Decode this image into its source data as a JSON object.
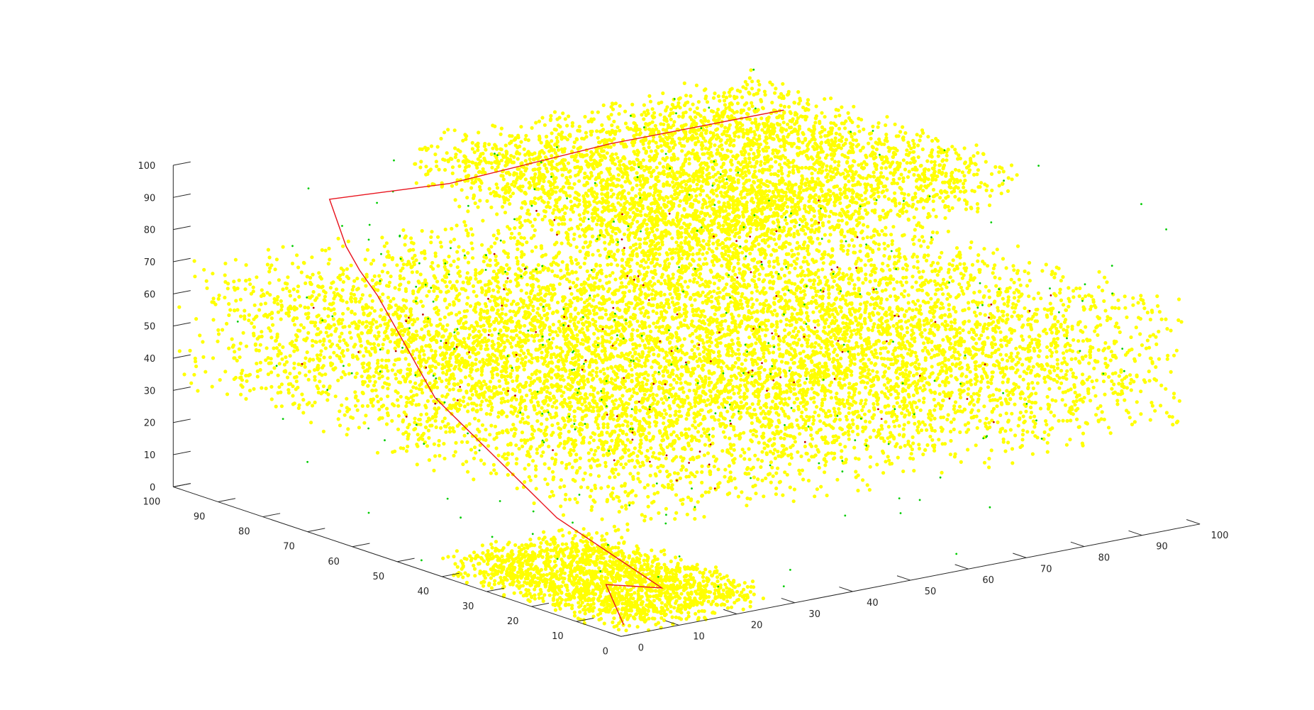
{
  "chart_data": {
    "type": "scatter",
    "title": "",
    "xlabel": "",
    "ylabel": "",
    "zlabel": "",
    "xlim": [
      0,
      100
    ],
    "ylim": [
      0,
      100
    ],
    "zlim": [
      0,
      100
    ],
    "x_ticks": [
      "0",
      "10",
      "20",
      "30",
      "40",
      "50",
      "60",
      "70",
      "80",
      "90",
      "100"
    ],
    "y_ticks": [
      "0",
      "10",
      "20",
      "30",
      "40",
      "50",
      "60",
      "70",
      "80",
      "90",
      "100"
    ],
    "z_ticks": [
      "0",
      "10",
      "20",
      "30",
      "40",
      "50",
      "60",
      "70",
      "80",
      "90",
      "100"
    ],
    "grid": false,
    "legend": "none",
    "colors": {
      "obstacle_points": "#ffff00",
      "sample_points": "#00cc00",
      "path": "#e8141e",
      "path_nodes": "#c00000",
      "axes": "#262626"
    },
    "obstacles": [
      {
        "name_hint": "bottom slab",
        "x_range": [
          0,
          25
        ],
        "y_range": [
          0,
          40
        ],
        "z_range": [
          0,
          8
        ]
      },
      {
        "name_hint": "middle slab",
        "x_range": [
          0,
          100
        ],
        "y_range": [
          0,
          100
        ],
        "z_range": [
          30,
          70
        ]
      },
      {
        "name_hint": "top slab",
        "x_range": [
          40,
          100
        ],
        "y_range": [
          40,
          100
        ],
        "z_range": [
          80,
          95
        ]
      }
    ],
    "path": {
      "points": [
        [
          2,
          2,
          2
        ],
        [
          9,
          15,
          6
        ],
        [
          14,
          9,
          6
        ],
        [
          16,
          35,
          15
        ],
        [
          22,
          70,
          34
        ],
        [
          26,
          88,
          56
        ],
        [
          26,
          92,
          62
        ],
        [
          26,
          95,
          68
        ],
        [
          27,
          100,
          80
        ],
        [
          40,
          90,
          85
        ],
        [
          60,
          80,
          95
        ],
        [
          90,
          80,
          95
        ]
      ]
    },
    "sample_points": {
      "count_approx": 300
    },
    "path_nodes": {
      "count_approx": 120
    }
  }
}
